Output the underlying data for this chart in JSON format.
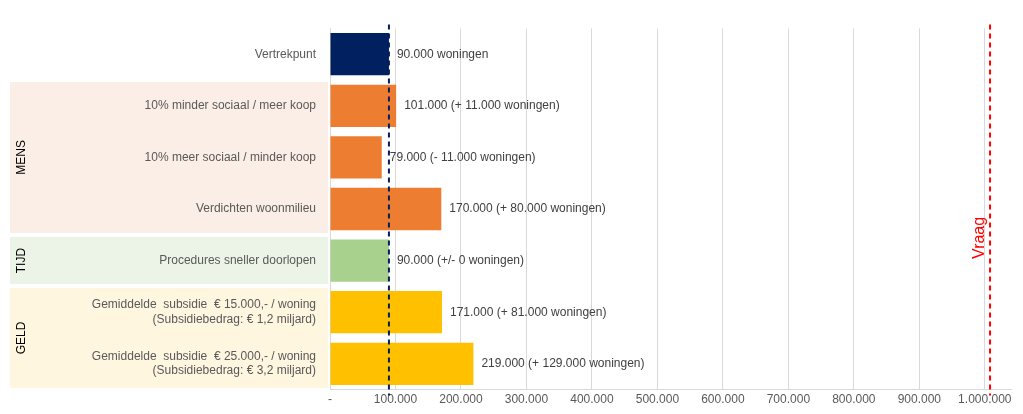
{
  "chart_data": {
    "type": "bar",
    "orientation": "horizontal",
    "categories": [
      "Vertrekpunt",
      "10% minder sociaal / meer koop",
      "10% meer sociaal / minder koop",
      "Verdichten woonmilieu",
      "Procedures sneller doorlopen",
      "Gemiddelde  subsidie  € 15.000,- / woning\n(Subsidiebedrag: € 1,2 miljard)",
      "Gemiddelde  subsidie  € 25.000,- / woning\n(Subsidiebedrag: € 3,2 miljard)"
    ],
    "values": [
      90000,
      101000,
      79000,
      170000,
      90000,
      171000,
      219000
    ],
    "colors": [
      "#002060",
      "#ed7d31",
      "#ed7d31",
      "#ed7d31",
      "#a9d18e",
      "#ffc000",
      "#ffc000"
    ],
    "value_labels": [
      "90.000 woningen",
      "101.000 (+ 11.000 woningen)",
      "79.000 (- 11.000 woningen)",
      "170.000 (+ 80.000 woningen)",
      "90.000 (+/- 0 woningen)",
      "171.000 (+ 81.000 woningen)",
      "219.000 (+ 129.000 woningen)"
    ],
    "xlim": [
      0,
      1040000
    ],
    "xticks": [
      {
        "value": 0,
        "label": "-"
      },
      {
        "value": 100000,
        "label": "100.000"
      },
      {
        "value": 200000,
        "label": "200.000"
      },
      {
        "value": 300000,
        "label": "300.000"
      },
      {
        "value": 400000,
        "label": "400.000"
      },
      {
        "value": 500000,
        "label": "500.000"
      },
      {
        "value": 600000,
        "label": "600.000"
      },
      {
        "value": 700000,
        "label": "700.000"
      },
      {
        "value": 800000,
        "label": "800.000"
      },
      {
        "value": 900000,
        "label": "900.000"
      },
      {
        "value": 1000000,
        "label": "1.000.000"
      }
    ],
    "ref_lines": [
      {
        "axis": "x",
        "value": 90000,
        "label": null,
        "color": "#002060",
        "line_style": "dashed"
      },
      {
        "axis": "x",
        "value": 1008000,
        "label": "Vraag",
        "color": "#ff0000",
        "line_style": "dashed"
      }
    ],
    "annotations": [
      "MENS",
      "TIJD",
      "GELD"
    ],
    "grid": "x",
    "legend": false
  }
}
